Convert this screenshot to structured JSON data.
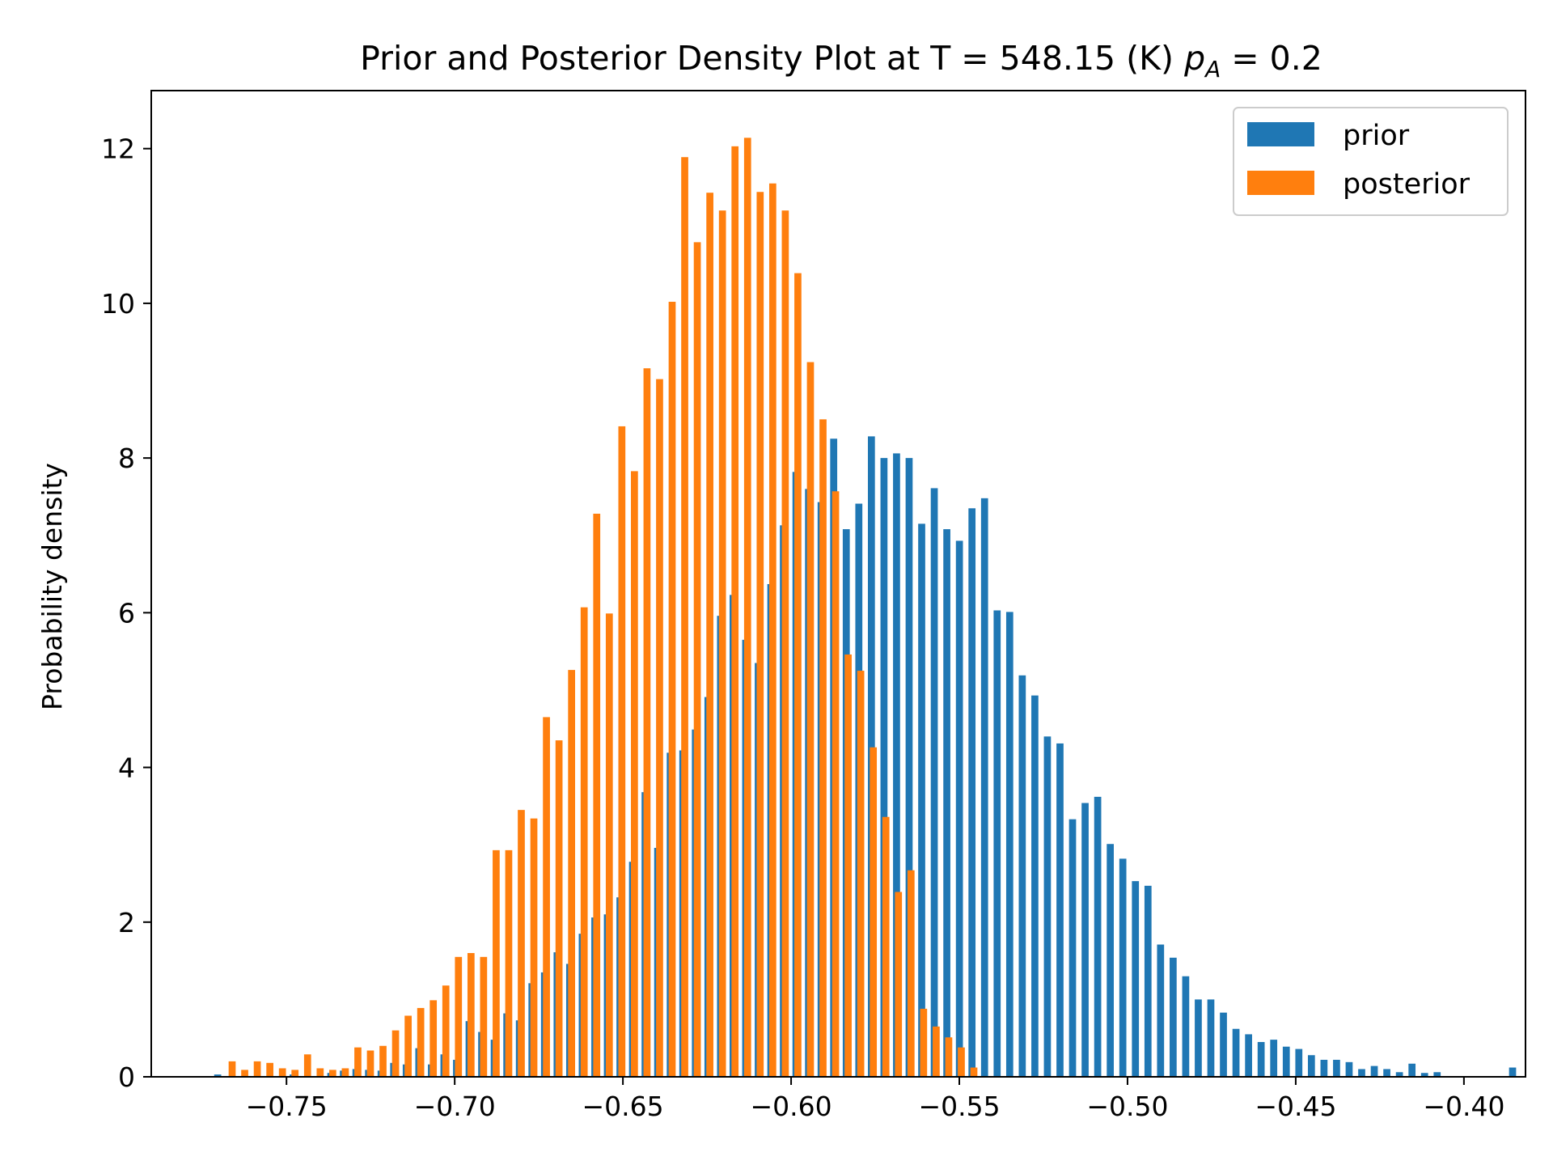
{
  "chart_data": {
    "type": "bar",
    "title_main": "Prior and Posterior Density Plot at T = 548.15 (K) ",
    "title_var": "p",
    "title_sub": "A",
    "title_end": " = 0.2",
    "xlabel": "",
    "ylabel": "Probability density",
    "xlim": [
      -0.7902,
      -0.3817
    ],
    "ylim": [
      0,
      12.75
    ],
    "grid": false,
    "legend_position": "top-right",
    "xticks": [
      -0.75,
      -0.7,
      -0.65,
      -0.6,
      -0.55,
      -0.5,
      -0.45,
      -0.4
    ],
    "xtick_labels": [
      "−0.75",
      "−0.70",
      "−0.65",
      "−0.60",
      "−0.55",
      "−0.50",
      "−0.45",
      "−0.40"
    ],
    "yticks": [
      0,
      2,
      4,
      6,
      8,
      10,
      12
    ],
    "ytick_labels": [
      "0",
      "2",
      "4",
      "6",
      "8",
      "10",
      "12"
    ],
    "series": [
      {
        "name": "prior",
        "color": "#1f77b4",
        "x_start": -0.7715,
        "bin_width": 0.003737,
        "values": [
          0.03,
          0.0,
          0.0,
          0.0,
          0.0,
          0.0,
          0.03,
          0.0,
          0.0,
          0.05,
          0.08,
          0.1,
          0.09,
          0.08,
          0.18,
          0.16,
          0.37,
          0.16,
          0.29,
          0.22,
          0.72,
          0.58,
          0.48,
          0.82,
          0.73,
          1.21,
          1.35,
          1.61,
          1.46,
          1.85,
          2.06,
          2.1,
          2.32,
          2.78,
          3.68,
          2.96,
          4.19,
          4.22,
          4.49,
          4.91,
          5.96,
          6.23,
          5.65,
          5.35,
          6.37,
          7.13,
          7.82,
          7.6,
          7.43,
          8.25,
          7.08,
          7.41,
          8.28,
          8.0,
          8.06,
          8.0,
          7.15,
          7.61,
          7.08,
          6.93,
          7.35,
          7.48,
          6.03,
          6.01,
          5.19,
          4.93,
          4.4,
          4.31,
          3.33,
          3.54,
          3.62,
          3.01,
          2.82,
          2.53,
          2.47,
          1.71,
          1.54,
          1.3,
          1.0,
          1.0,
          0.83,
          0.62,
          0.55,
          0.45,
          0.48,
          0.39,
          0.36,
          0.28,
          0.22,
          0.22,
          0.19,
          0.1,
          0.14,
          0.1,
          0.06,
          0.17,
          0.05,
          0.06,
          0.0,
          0.0,
          0.0,
          0.0,
          0.0,
          0.12,
          0.0,
          0.0,
          0.0,
          0.0,
          0.0,
          0.0,
          0.0,
          0.0,
          0.0,
          0.03
        ]
      },
      {
        "name": "posterior",
        "color": "#ff7f0e",
        "x_start": -0.7672,
        "bin_width": 0.003737,
        "values": [
          0.2,
          0.09,
          0.2,
          0.18,
          0.11,
          0.09,
          0.29,
          0.11,
          0.09,
          0.11,
          0.38,
          0.34,
          0.4,
          0.6,
          0.79,
          0.89,
          0.99,
          1.18,
          1.55,
          1.6,
          1.55,
          2.93,
          2.93,
          3.45,
          3.34,
          4.65,
          4.35,
          5.26,
          6.07,
          7.28,
          5.99,
          8.41,
          7.83,
          9.16,
          9.02,
          10.02,
          11.89,
          10.79,
          11.43,
          11.2,
          12.03,
          12.14,
          11.44,
          11.55,
          11.2,
          10.39,
          9.24,
          8.5,
          7.57,
          5.46,
          5.25,
          4.26,
          3.36,
          2.39,
          2.67,
          0.88,
          0.65,
          0.51,
          0.38,
          0.12
        ]
      }
    ]
  }
}
